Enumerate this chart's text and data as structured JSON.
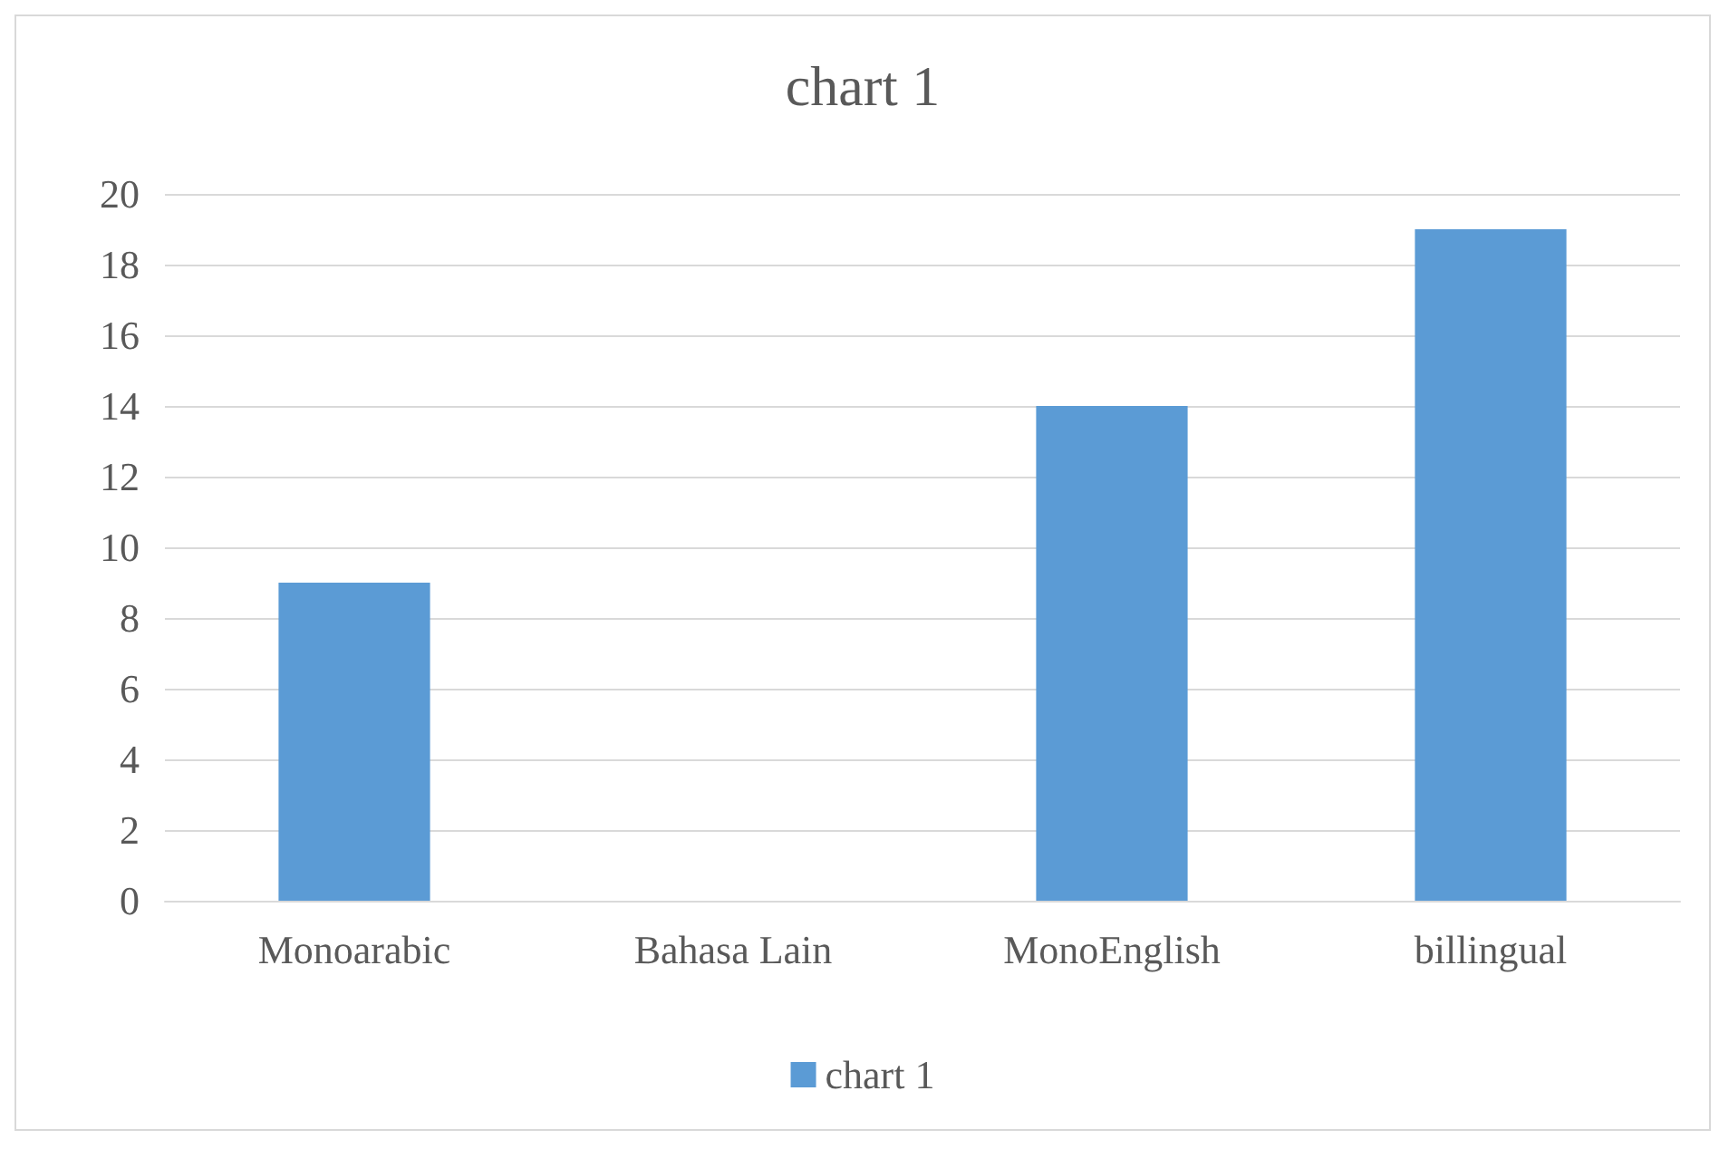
{
  "chart_data": {
    "type": "bar",
    "title": "chart 1",
    "categories": [
      "Monoarabic",
      "Bahasa Lain",
      "MonoEnglish",
      "billingual"
    ],
    "series": [
      {
        "name": "chart 1",
        "color": "#5b9bd5",
        "values": [
          9,
          0,
          14,
          19
        ]
      }
    ],
    "ylim": [
      0,
      20
    ],
    "yticks": [
      0,
      2,
      4,
      6,
      8,
      10,
      12,
      14,
      16,
      18,
      20
    ],
    "grid": "y",
    "legend": "bottom"
  }
}
